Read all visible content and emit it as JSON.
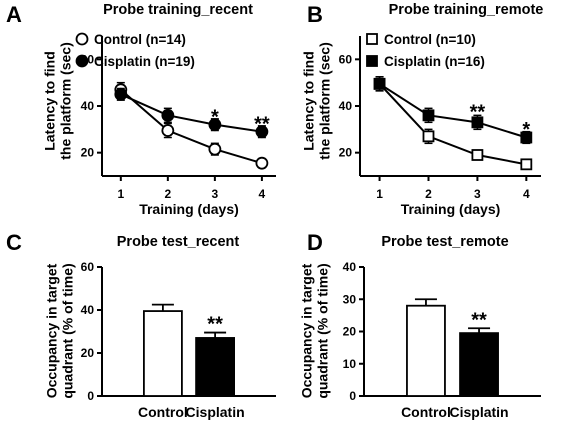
{
  "chart_data": [
    {
      "id": "A",
      "type": "line",
      "panel_letter": "A",
      "title": "Probe training_recent",
      "xlabel": "Training (days)",
      "ylabel": "Latency to find the platform (sec)",
      "ylabel_lines": [
        "Latency to find",
        "the platform (sec)"
      ],
      "x": [
        1,
        2,
        3,
        4
      ],
      "xlim": [
        0.6,
        4.3
      ],
      "ylim": [
        10,
        70
      ],
      "yticks": [
        20,
        40,
        60
      ],
      "series": [
        {
          "name": "Control (n=14)",
          "marker": "circle",
          "fill": "open",
          "values": [
            47,
            29.5,
            21.5,
            15.5
          ],
          "errors": [
            3,
            3,
            2.5,
            1.3
          ]
        },
        {
          "name": "Cisplatin (n=19)",
          "marker": "circle",
          "fill": "filled",
          "values": [
            45,
            36,
            32,
            29
          ],
          "errors": [
            2.5,
            3,
            2.5,
            2.5
          ]
        }
      ],
      "annotations": [
        {
          "x": 3,
          "y": 36,
          "text": "*"
        },
        {
          "x": 4,
          "y": 33,
          "text": "**"
        }
      ]
    },
    {
      "id": "B",
      "type": "line",
      "panel_letter": "B",
      "title": "Probe training_remote",
      "xlabel": "Training (days)",
      "ylabel": "Latency to find the platform (sec)",
      "ylabel_lines": [
        "Latency to find",
        "the platform (sec)"
      ],
      "x": [
        1,
        2,
        3,
        4
      ],
      "xlim": [
        0.6,
        4.3
      ],
      "ylim": [
        10,
        70
      ],
      "yticks": [
        20,
        40,
        60
      ],
      "series": [
        {
          "name": "Control (n=10)",
          "marker": "square",
          "fill": "open",
          "values": [
            49.5,
            27,
            19,
            15
          ],
          "errors": [
            3,
            3,
            1.5,
            1.2
          ]
        },
        {
          "name": "Cisplatin (n=16)",
          "marker": "square",
          "fill": "filled",
          "values": [
            49.5,
            36,
            33,
            26.5
          ],
          "errors": [
            3,
            3,
            3,
            2.5
          ]
        }
      ],
      "annotations": [
        {
          "x": 3,
          "y": 38,
          "text": "**"
        },
        {
          "x": 4,
          "y": 30.5,
          "text": "*"
        }
      ]
    },
    {
      "id": "C",
      "type": "bar",
      "panel_letter": "C",
      "title": "Probe test_recent",
      "xlabel": "",
      "ylabel": "Occupancy in target quadrant (% of time)",
      "ylabel_lines": [
        "Occupancy in target",
        "quadrant (% of time)"
      ],
      "categories": [
        "Control",
        "Cisplatin"
      ],
      "values": [
        39.5,
        27
      ],
      "errors": [
        3,
        2.5
      ],
      "fills": [
        "#ffffff",
        "#000000"
      ],
      "ylim": [
        0,
        60
      ],
      "yticks": [
        0,
        20,
        40,
        60
      ],
      "annotations": [
        {
          "index": 1,
          "text": "**"
        }
      ]
    },
    {
      "id": "D",
      "type": "bar",
      "panel_letter": "D",
      "title": "Probe test_remote",
      "xlabel": "",
      "ylabel": "Occupancy in target quadrant (% of time)",
      "ylabel_lines": [
        "Occupancy in target",
        "quadrant (% of time)"
      ],
      "categories": [
        "Control",
        "Cisplatin"
      ],
      "values": [
        28,
        19.5
      ],
      "errors": [
        2,
        1.5
      ],
      "fills": [
        "#ffffff",
        "#000000"
      ],
      "ylim": [
        0,
        40
      ],
      "yticks": [
        0,
        10,
        20,
        30,
        40
      ],
      "annotations": [
        {
          "index": 1,
          "text": "**"
        }
      ]
    }
  ]
}
